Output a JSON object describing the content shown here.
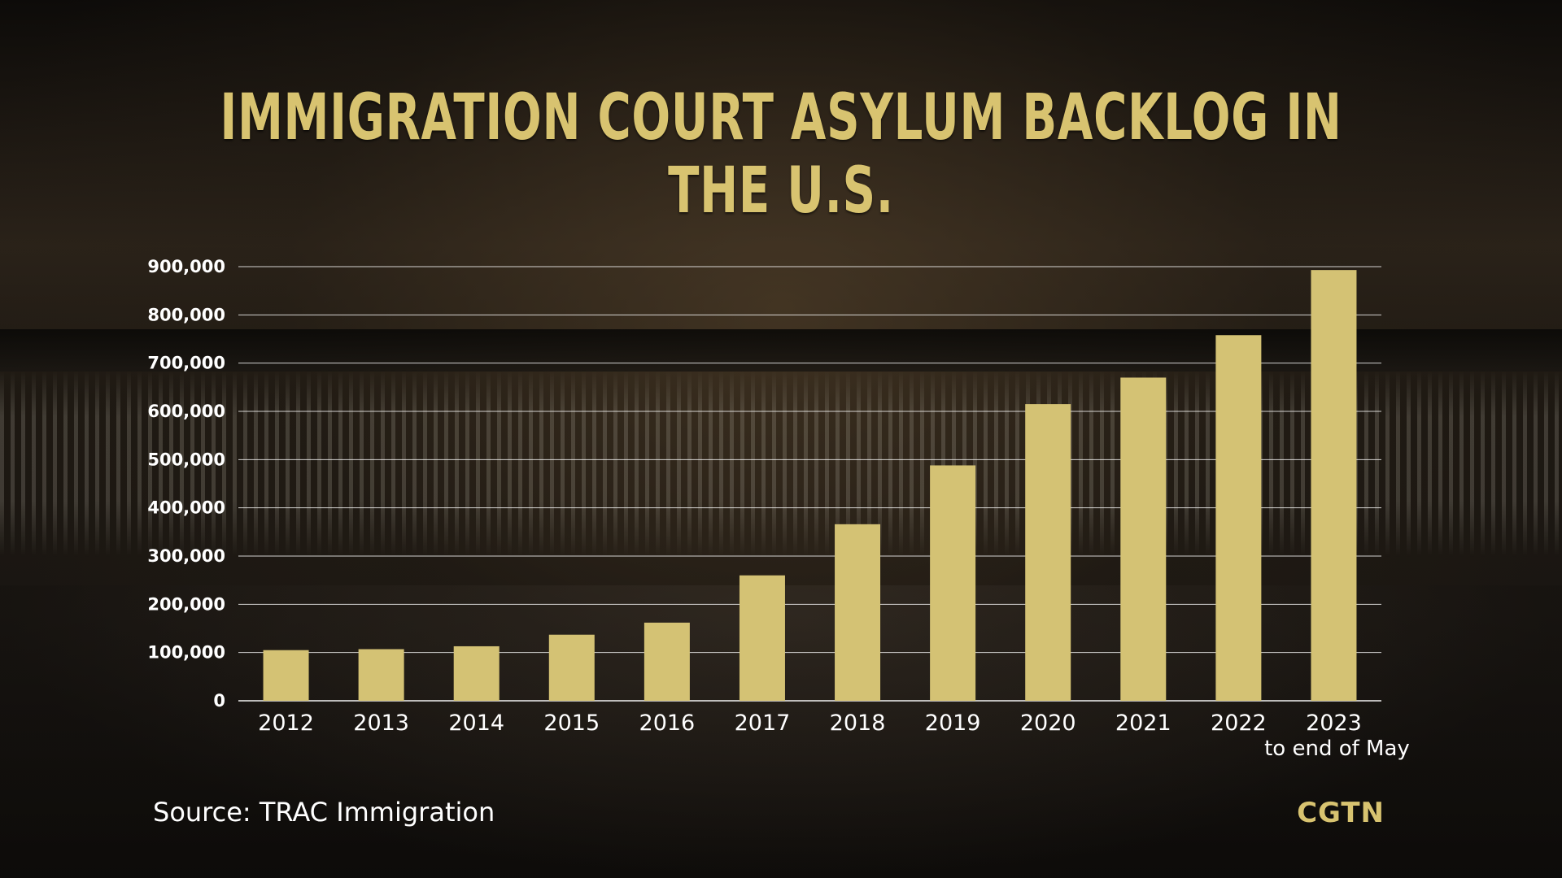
{
  "colors": {
    "bar": "#d4c274",
    "title": "#d8c370",
    "grid": "#ffffff",
    "text": "#ffffff"
  },
  "chart_data": {
    "type": "bar",
    "title": "IMMIGRATION COURT ASYLUM BACKLOG IN THE U.S.",
    "xlabel": "",
    "ylabel": "",
    "ylim": [
      0,
      900000
    ],
    "grid": true,
    "yticks": [
      "0",
      "100,000",
      "200,000",
      "300,000",
      "400,000",
      "500,000",
      "600,000",
      "700,000",
      "800,000",
      "900,000"
    ],
    "categories": [
      "2012",
      "2013",
      "2014",
      "2015",
      "2016",
      "2017",
      "2018",
      "2019",
      "2020",
      "2021",
      "2022",
      "2023"
    ],
    "category_notes": [
      "",
      "",
      "",
      "",
      "",
      "",
      "",
      "",
      "",
      "",
      "",
      "to end of May"
    ],
    "values": [
      105000,
      107000,
      113000,
      137000,
      162000,
      260000,
      366000,
      488000,
      615000,
      670000,
      758000,
      893000
    ]
  },
  "footer": {
    "source": "Source: TRAC Immigration",
    "logo": "CGTN"
  }
}
